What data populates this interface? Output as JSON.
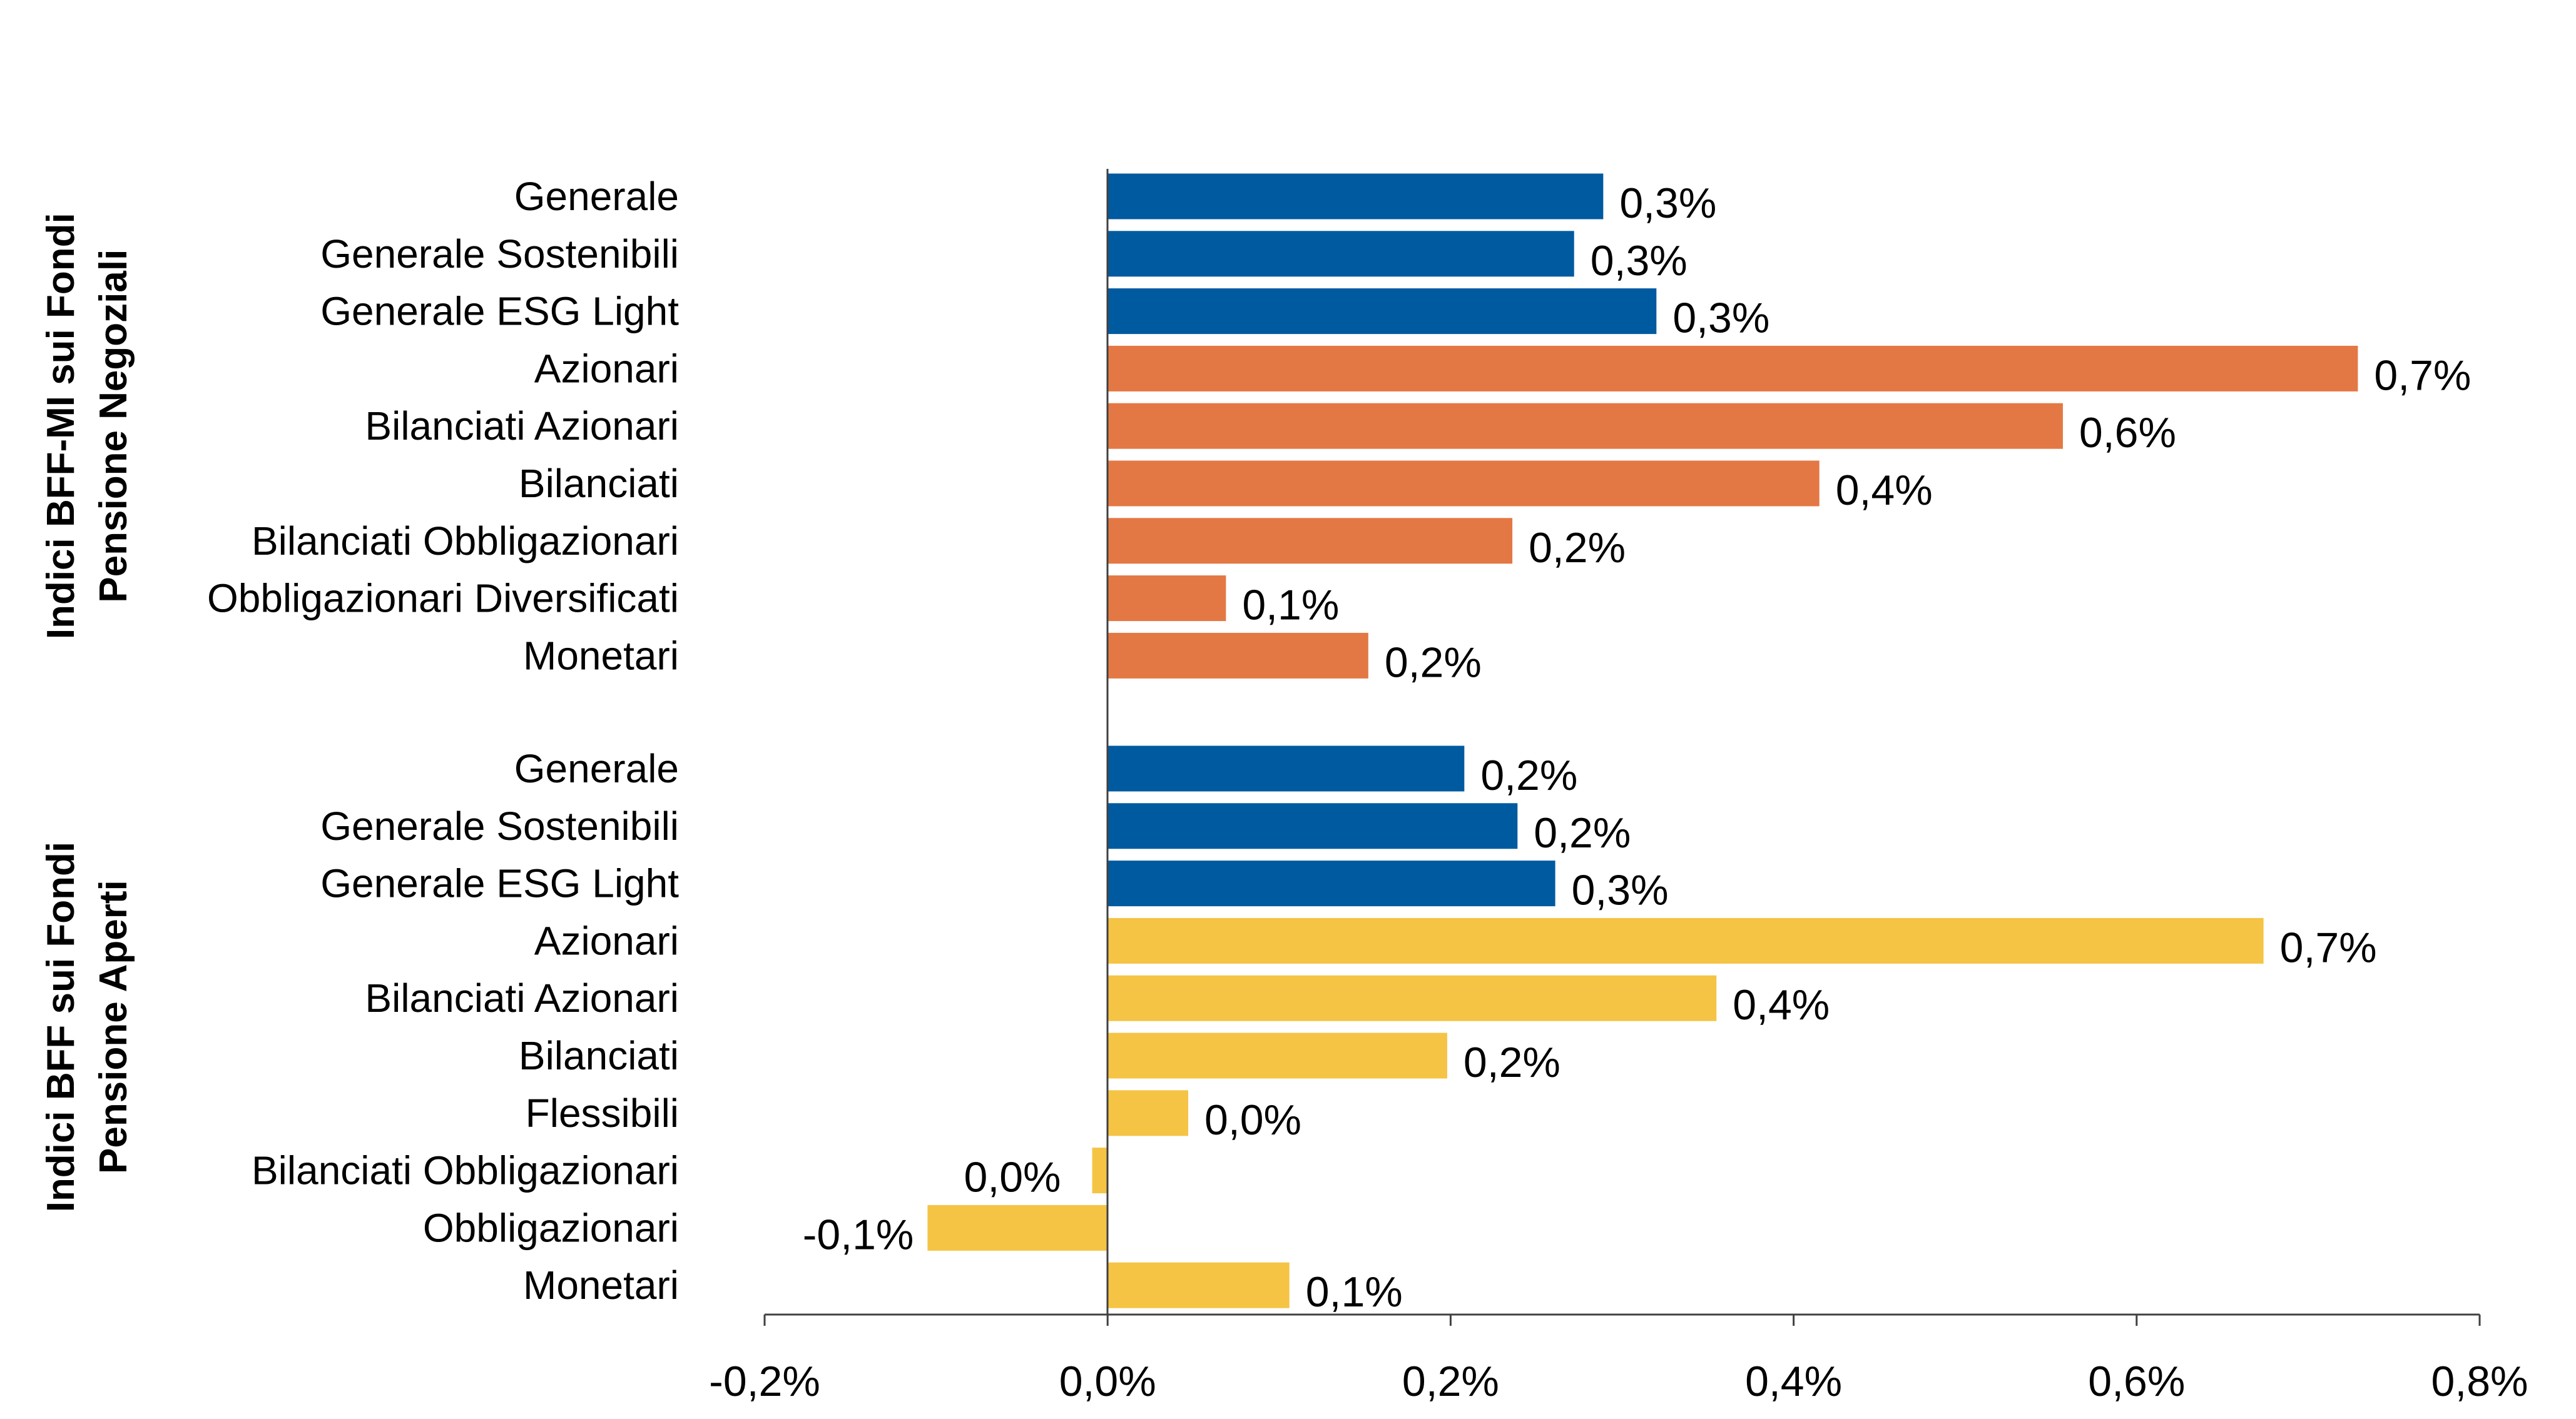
{
  "colors": {
    "generale": "#005aa0",
    "negoziali": "#e37844",
    "aperti": "#f5c445",
    "axis": "#404040"
  },
  "chart_data": {
    "type": "bar",
    "orientation": "horizontal",
    "title": "",
    "xlabel": "",
    "ylabel": "",
    "xlim": [
      -0.2,
      0.8
    ],
    "ticks": [
      -0.2,
      0.0,
      0.2,
      0.4,
      0.6,
      0.8
    ],
    "tick_labels": [
      "-0,2%",
      "0,0%",
      "0,2%",
      "0,4%",
      "0,6%",
      "0,8%"
    ],
    "groups": [
      {
        "name_line1": "Indici BFF-MI sui Fondi",
        "name_line2": "Pensione Negoziali",
        "items": [
          {
            "category": "Generale",
            "value": 0.289,
            "label": "0,3%",
            "color": "generale"
          },
          {
            "category": "Generale Sostenibili",
            "value": 0.272,
            "label": "0,3%",
            "color": "generale"
          },
          {
            "category": "Generale ESG Light",
            "value": 0.32,
            "label": "0,3%",
            "color": "generale"
          },
          {
            "category": "Azionari",
            "value": 0.729,
            "label": "0,7%",
            "color": "negoziali"
          },
          {
            "category": "Bilanciati Azionari",
            "value": 0.557,
            "label": "0,6%",
            "color": "negoziali"
          },
          {
            "category": "Bilanciati",
            "value": 0.415,
            "label": "0,4%",
            "color": "negoziali"
          },
          {
            "category": "Bilanciati Obbligazionari",
            "value": 0.236,
            "label": "0,2%",
            "color": "negoziali"
          },
          {
            "category": "Obbligazionari Diversificati",
            "value": 0.069,
            "label": "0,1%",
            "color": "negoziali"
          },
          {
            "category": "Monetari",
            "value": 0.152,
            "label": "0,2%",
            "color": "negoziali"
          }
        ]
      },
      {
        "name_line1": "Indici BFF sui Fondi",
        "name_line2": "Pensione Aperti",
        "items": [
          {
            "category": "Generale",
            "value": 0.208,
            "label": "0,2%",
            "color": "generale"
          },
          {
            "category": "Generale Sostenibili",
            "value": 0.239,
            "label": "0,2%",
            "color": "generale"
          },
          {
            "category": "Generale ESG Light",
            "value": 0.261,
            "label": "0,3%",
            "color": "generale"
          },
          {
            "category": "Azionari",
            "value": 0.674,
            "label": "0,7%",
            "color": "aperti"
          },
          {
            "category": "Bilanciati Azionari",
            "value": 0.355,
            "label": "0,4%",
            "color": "aperti"
          },
          {
            "category": "Bilanciati",
            "value": 0.198,
            "label": "0,2%",
            "color": "aperti"
          },
          {
            "category": "Flessibili",
            "value": 0.047,
            "label": "0,0%",
            "color": "aperti"
          },
          {
            "category": "Bilanciati Obbligazionari",
            "value": -0.009,
            "label": "0,0%",
            "color": "aperti"
          },
          {
            "category": "Obbligazionari",
            "value": -0.105,
            "label": "-0,1%",
            "color": "aperti"
          },
          {
            "category": "Monetari",
            "value": 0.106,
            "label": "0,1%",
            "color": "aperti"
          }
        ]
      }
    ]
  }
}
